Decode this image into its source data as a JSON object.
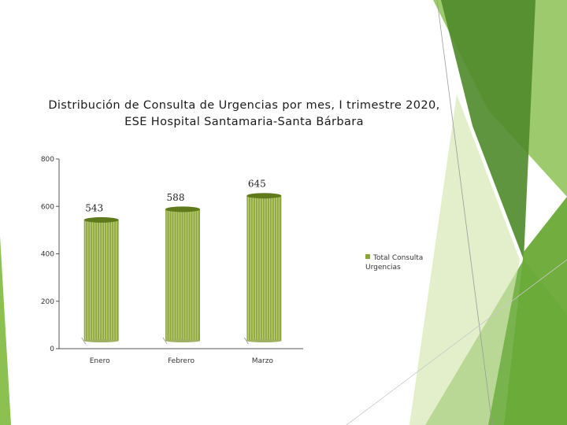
{
  "colors": {
    "bar_fill": "#8fa83c",
    "bar_stripe": "#c6d48e",
    "bar_top": "#5e7a1a",
    "axis": "#555555",
    "deco_dark": "#4f8a2a",
    "deco_mid": "#72ad40",
    "deco_light": "#a9cf6f",
    "deco_pale": "#d6e8b4"
  },
  "chart_data": {
    "type": "bar",
    "title": "Distribución de Consulta de Urgencias por mes, I trimestre 2020, ESE Hospital Santamaria-Santa Bárbara",
    "categories": [
      "Enero",
      "Febrero",
      "Marzo"
    ],
    "series": [
      {
        "name": "Total Consulta Urgencias",
        "values": [
          543,
          588,
          645
        ]
      }
    ],
    "data_labels": [
      "543",
      "588",
      "645"
    ],
    "ylim": [
      0,
      800
    ],
    "yticks": [
      0,
      200,
      400,
      600,
      800
    ],
    "ytick_labels": [
      "0",
      "200",
      "400",
      "600",
      "800"
    ],
    "legend_placement": "right",
    "grid": false
  }
}
